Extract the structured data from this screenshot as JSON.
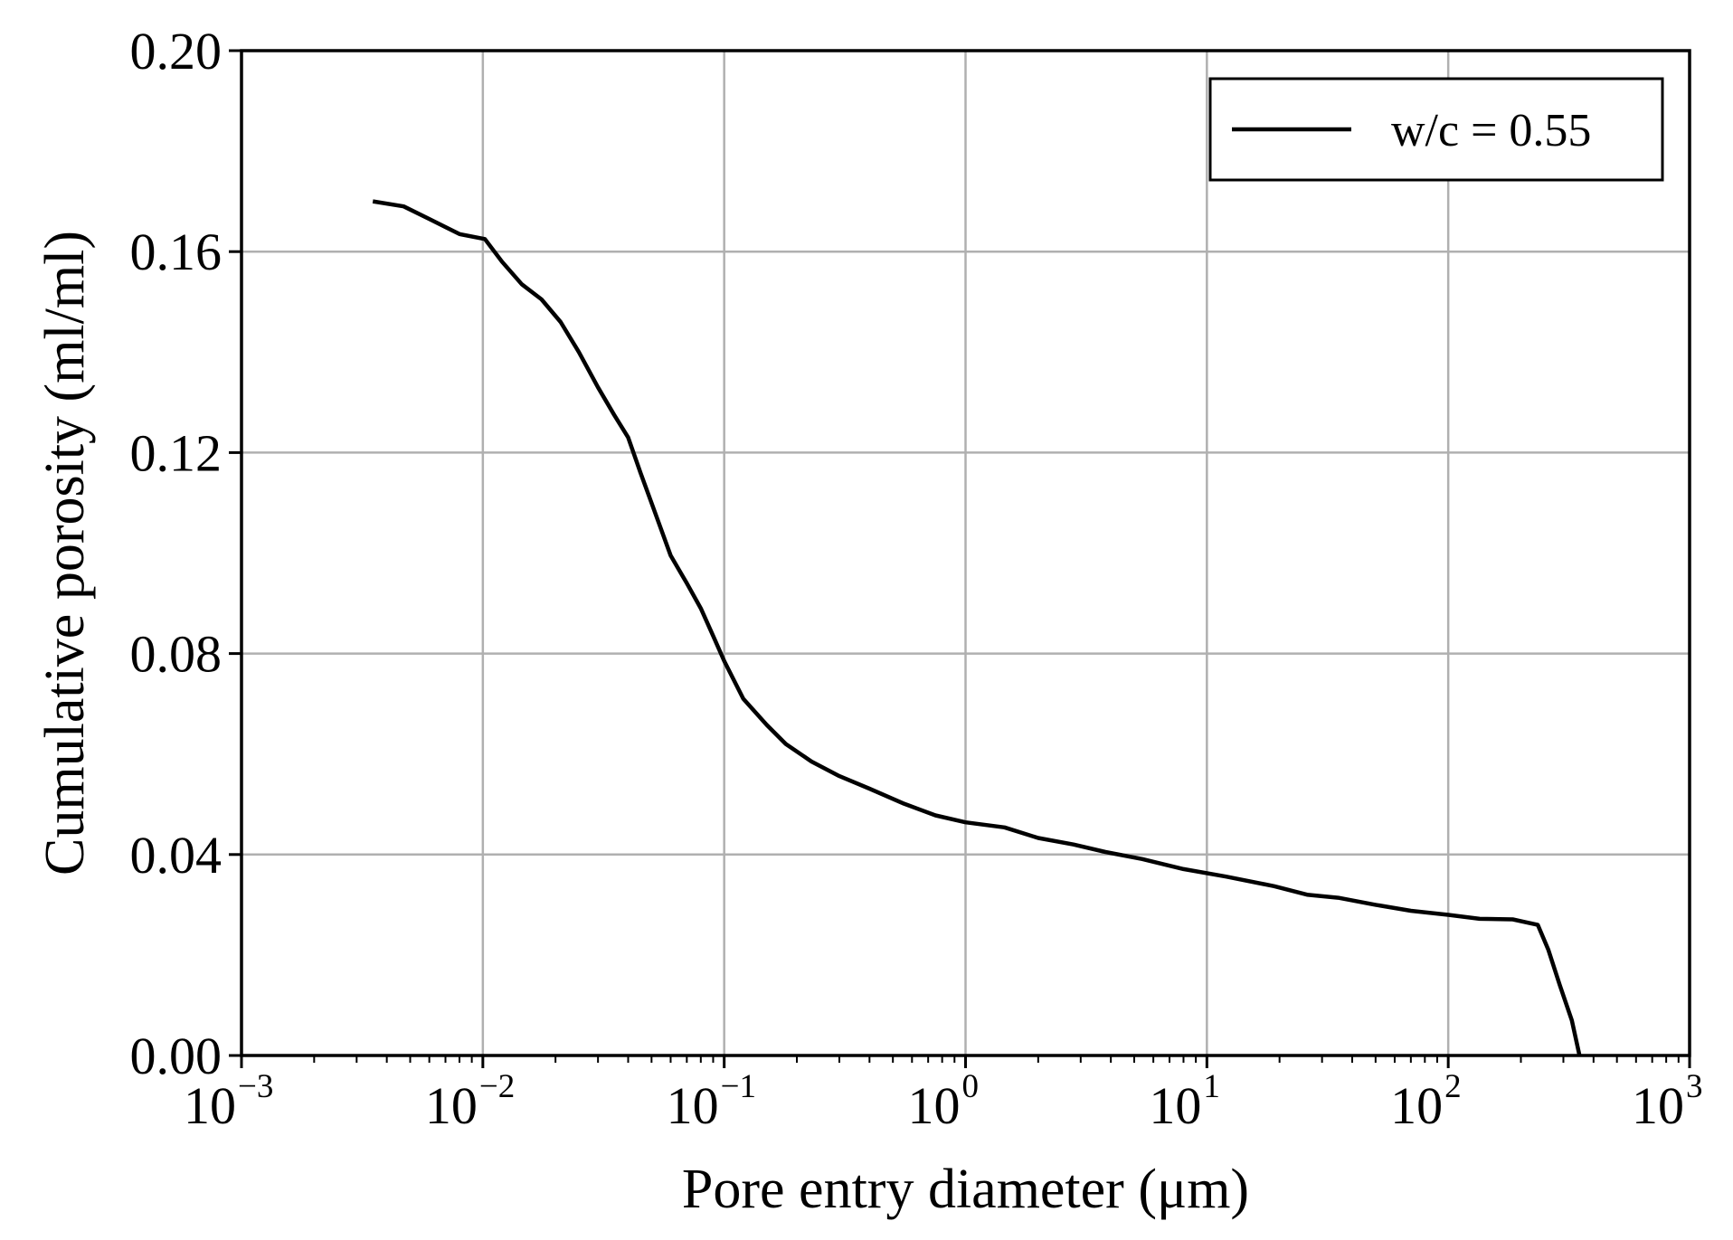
{
  "chart_data": {
    "type": "line",
    "xscale": "log",
    "xlim": [
      0.001,
      1000
    ],
    "ylim": [
      0,
      0.2
    ],
    "xlabel": "Pore entry diameter (μm)",
    "ylabel": "Cumulative porosity (ml/ml)",
    "grid": true,
    "legend_position": "top-right",
    "x_ticks": [
      {
        "value": 0.001,
        "base": "10",
        "exp": "−3"
      },
      {
        "value": 0.01,
        "base": "10",
        "exp": "−2"
      },
      {
        "value": 0.1,
        "base": "10",
        "exp": "−1"
      },
      {
        "value": 1,
        "base": "10",
        "exp": "0"
      },
      {
        "value": 10,
        "base": "10",
        "exp": "1"
      },
      {
        "value": 100,
        "base": "10",
        "exp": "2"
      },
      {
        "value": 1000,
        "base": "10",
        "exp": "3"
      }
    ],
    "y_ticks": [
      {
        "value": 0.0,
        "label": "0.00"
      },
      {
        "value": 0.04,
        "label": "0.04"
      },
      {
        "value": 0.08,
        "label": "0.08"
      },
      {
        "value": 0.12,
        "label": "0.12"
      },
      {
        "value": 0.16,
        "label": "0.16"
      },
      {
        "value": 0.2,
        "label": "0.20"
      }
    ],
    "series": [
      {
        "name": "w/c = 0.55",
        "color": "#000000",
        "x": [
          0.0035,
          0.0047,
          0.006,
          0.008,
          0.0102,
          0.012,
          0.0145,
          0.0175,
          0.021,
          0.025,
          0.03,
          0.035,
          0.04,
          0.045,
          0.05,
          0.055,
          0.06,
          0.07,
          0.08,
          0.09,
          0.1,
          0.12,
          0.15,
          0.18,
          0.23,
          0.3,
          0.4,
          0.55,
          0.75,
          1.0,
          1.45,
          2.0,
          2.8,
          3.8,
          5.4,
          8.0,
          12.0,
          19.0,
          26.0,
          35.0,
          50.0,
          70.0,
          100.0,
          135.0,
          185.0,
          235.0,
          260.0,
          290.0,
          325.0,
          350.0
        ],
        "y": [
          0.17,
          0.169,
          0.1665,
          0.1635,
          0.1625,
          0.158,
          0.1535,
          0.1505,
          0.146,
          0.14,
          0.133,
          0.1275,
          0.123,
          0.116,
          0.11,
          0.1045,
          0.0995,
          0.094,
          0.089,
          0.0835,
          0.0785,
          0.071,
          0.0658,
          0.062,
          0.0585,
          0.0556,
          0.0531,
          0.0502,
          0.0478,
          0.0464,
          0.0454,
          0.0433,
          0.042,
          0.0405,
          0.0391,
          0.0371,
          0.0356,
          0.0337,
          0.032,
          0.0314,
          0.03,
          0.0288,
          0.028,
          0.0272,
          0.0271,
          0.026,
          0.021,
          0.014,
          0.007,
          0.0
        ]
      }
    ]
  }
}
